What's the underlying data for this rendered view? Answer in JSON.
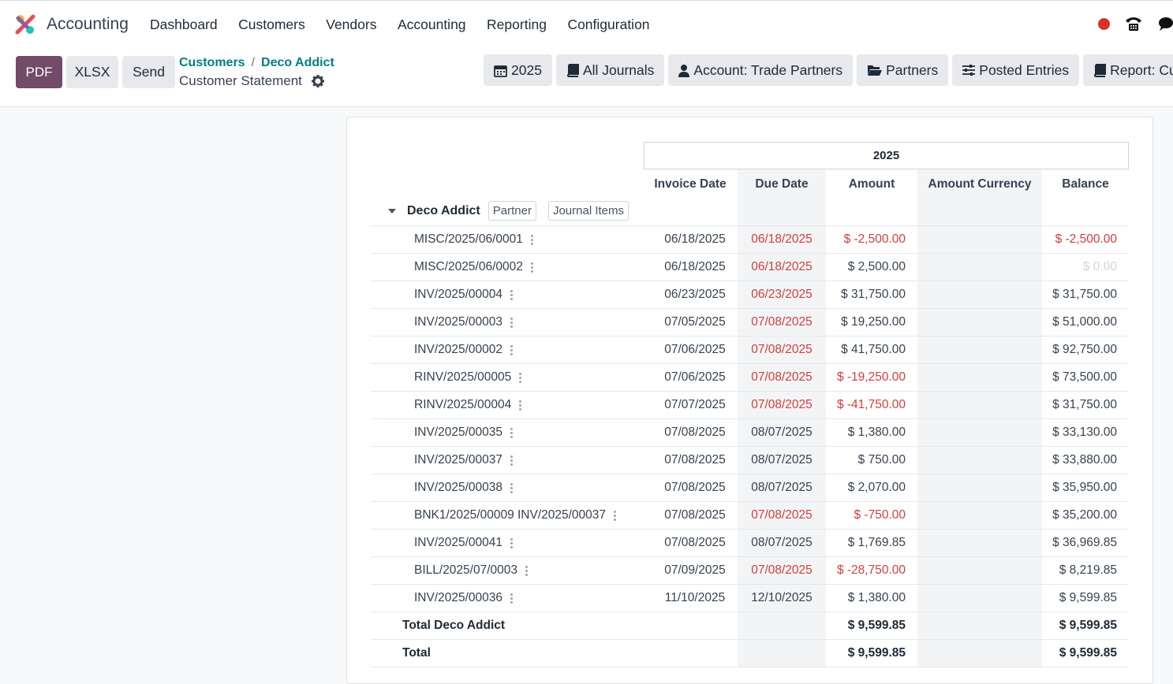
{
  "app": {
    "name": "Accounting"
  },
  "menu": [
    "Dashboard",
    "Customers",
    "Vendors",
    "Accounting",
    "Reporting",
    "Configuration"
  ],
  "control": {
    "pdf": "PDF",
    "xlsx": "XLSX",
    "send": "Send",
    "breadcrumb": [
      "Customers",
      "Deco Addict"
    ],
    "subtitle": "Customer Statement"
  },
  "filters": [
    "2025",
    "All Journals",
    "Account: Trade Partners",
    "Partners",
    "Posted Entries",
    "Report: Cu"
  ],
  "report": {
    "period": "2025",
    "columns": [
      "Invoice Date",
      "Due Date",
      "Amount",
      "Amount Currency",
      "Balance"
    ],
    "partner": "Deco Addict",
    "tags": [
      "Partner",
      "Journal Items"
    ],
    "rows": [
      {
        "name": "MISC/2025/06/0001",
        "inv": "06/18/2025",
        "due": "06/18/2025",
        "amount": "$ -2,500.00",
        "balance": "$ -2,500.00"
      },
      {
        "name": "MISC/2025/06/0002",
        "inv": "06/18/2025",
        "due": "06/18/2025",
        "amount": "$ 2,500.00",
        "balance": "$ 0.00"
      },
      {
        "name": "INV/2025/00004",
        "inv": "06/23/2025",
        "due": "06/23/2025",
        "amount": "$ 31,750.00",
        "balance": "$ 31,750.00"
      },
      {
        "name": "INV/2025/00003",
        "inv": "07/05/2025",
        "due": "07/08/2025",
        "amount": "$ 19,250.00",
        "balance": "$ 51,000.00"
      },
      {
        "name": "INV/2025/00002",
        "inv": "07/06/2025",
        "due": "07/08/2025",
        "amount": "$ 41,750.00",
        "balance": "$ 92,750.00"
      },
      {
        "name": "RINV/2025/00005",
        "inv": "07/06/2025",
        "due": "07/08/2025",
        "amount": "$ -19,250.00",
        "balance": "$ 73,500.00"
      },
      {
        "name": "RINV/2025/00004",
        "inv": "07/07/2025",
        "due": "07/08/2025",
        "amount": "$ -41,750.00",
        "balance": "$ 31,750.00"
      },
      {
        "name": "INV/2025/00035",
        "inv": "07/08/2025",
        "due": "08/07/2025",
        "amount": "$ 1,380.00",
        "balance": "$ 33,130.00"
      },
      {
        "name": "INV/2025/00037",
        "inv": "07/08/2025",
        "due": "08/07/2025",
        "amount": "$ 750.00",
        "balance": "$ 33,880.00"
      },
      {
        "name": "INV/2025/00038",
        "inv": "07/08/2025",
        "due": "08/07/2025",
        "amount": "$ 2,070.00",
        "balance": "$ 35,950.00"
      },
      {
        "name": "BNK1/2025/00009 INV/2025/00037",
        "inv": "07/08/2025",
        "due": "07/08/2025",
        "amount": "$ -750.00",
        "balance": "$ 35,200.00"
      },
      {
        "name": "INV/2025/00041",
        "inv": "07/08/2025",
        "due": "08/07/2025",
        "amount": "$ 1,769.85",
        "balance": "$ 36,969.85"
      },
      {
        "name": "BILL/2025/07/0003",
        "inv": "07/09/2025",
        "due": "07/08/2025",
        "amount": "$ -28,750.00",
        "balance": "$ 8,219.85"
      },
      {
        "name": "INV/2025/00036",
        "inv": "11/10/2025",
        "due": "12/10/2025",
        "amount": "$ 1,380.00",
        "balance": "$ 9,599.85"
      }
    ],
    "total_partner": {
      "label": "Total Deco Addict",
      "amount": "$ 9,599.85",
      "balance": "$ 9,599.85"
    },
    "total": {
      "label": "Total",
      "amount": "$ 9,599.85",
      "balance": "$ 9,599.85"
    }
  }
}
